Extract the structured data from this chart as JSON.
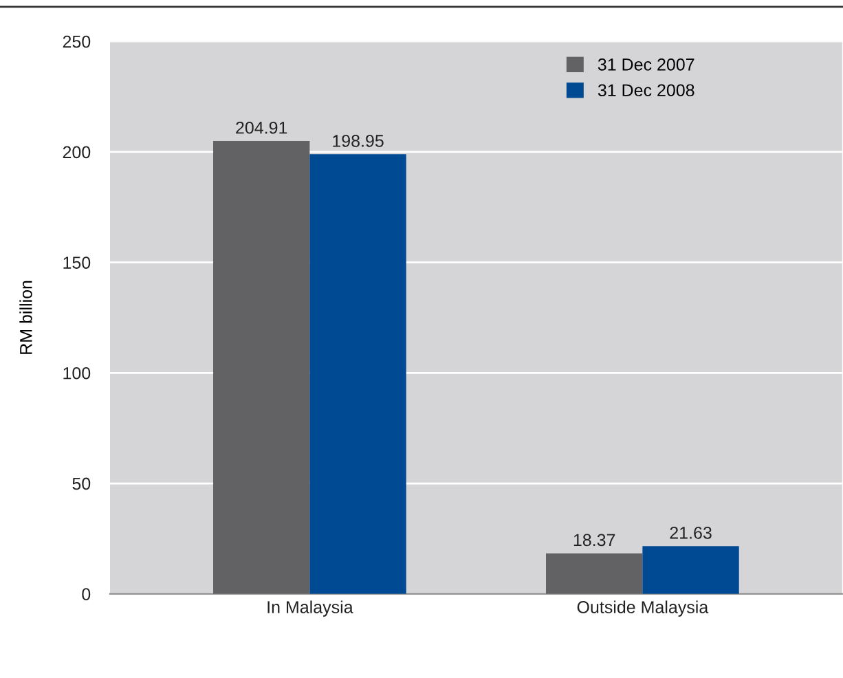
{
  "chart_data": {
    "type": "bar",
    "ylabel": "RM billion",
    "categories": [
      "In Malaysia",
      "Outside Malaysia"
    ],
    "series": [
      {
        "name": "31 Dec 2007",
        "color": "#626264",
        "values": [
          204.91,
          18.37
        ]
      },
      {
        "name": "31 Dec 2008",
        "color": "#004a93",
        "values": [
          198.95,
          21.63
        ]
      }
    ],
    "ylim": [
      0,
      250
    ],
    "yticks": [
      0,
      50,
      100,
      150,
      200,
      250
    ],
    "grid": "y",
    "legend": "top right",
    "data_labels": true
  }
}
